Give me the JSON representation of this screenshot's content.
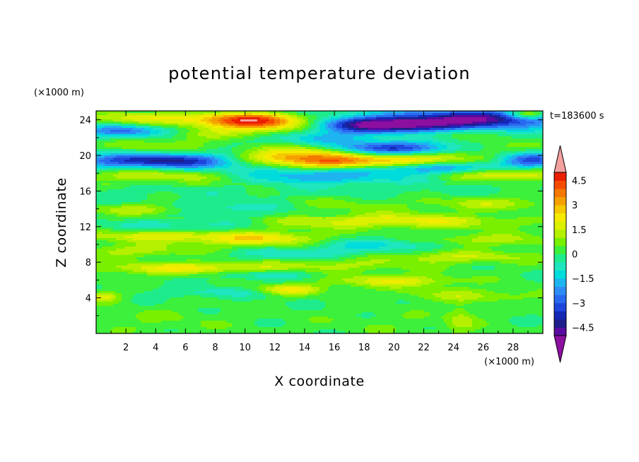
{
  "chart_data": {
    "type": "heatmap",
    "title": "potential temperature deviation",
    "xlabel": "X coordinate",
    "ylabel": "Z coordinate",
    "x_unit": "(×1000 m)",
    "y_unit": "(×1000 m)",
    "time_label": "t=183600 s",
    "xlim": [
      0,
      30
    ],
    "ylim": [
      0,
      25
    ],
    "x_ticks": [
      2,
      4,
      6,
      8,
      10,
      12,
      14,
      16,
      18,
      20,
      22,
      24,
      26,
      28
    ],
    "y_ticks": [
      4,
      8,
      12,
      16,
      20,
      24
    ],
    "x_tick_labels": [
      "2",
      "4",
      "6",
      "8",
      "10",
      "12",
      "14",
      "16",
      "18",
      "20",
      "22",
      "24",
      "26",
      "28"
    ],
    "y_tick_labels": [
      "4",
      "8",
      "12",
      "16",
      "20",
      "24"
    ],
    "colorbar": {
      "levels": [
        -5,
        -4.5,
        -4,
        -3.5,
        -3,
        -2.5,
        -2,
        -1.5,
        -1,
        -0.5,
        0,
        0.5,
        1,
        1.5,
        2,
        2.5,
        3,
        3.5,
        4,
        4.5,
        5
      ],
      "colors": [
        "#5a0aa0",
        "#1e1e8c",
        "#1428b4",
        "#1e46dc",
        "#2869f0",
        "#2d8cf5",
        "#1eb4f0",
        "#00dcdc",
        "#1ee6be",
        "#1eeb8c",
        "#3cf03c",
        "#78f000",
        "#b4f000",
        "#dcf000",
        "#f5eb00",
        "#f5c800",
        "#f5a000",
        "#f57800",
        "#f54b00",
        "#eb1e00"
      ],
      "below_color": "#8c0fa0",
      "above_color": "#f5a0a0",
      "tick_values": [
        4.5,
        3,
        1.5,
        0,
        -1.5,
        -3,
        -4.5
      ],
      "tick_labels": [
        "4.5",
        "3",
        "1.5",
        "0",
        "−1.5",
        "−3",
        "−4.5"
      ]
    },
    "features": [
      {
        "x": 10,
        "z": 24.0,
        "sx": 2.6,
        "sz": 0.6,
        "v": 3.8
      },
      {
        "x": 3.0,
        "z": 24.2,
        "sx": 3.0,
        "sz": 0.6,
        "v": 2.2
      },
      {
        "x": 16,
        "z": 24.3,
        "sx": 5.0,
        "sz": 0.5,
        "v": 1.2
      },
      {
        "x": 29,
        "z": 24.6,
        "sx": 1.0,
        "sz": 0.4,
        "v": 3.5
      },
      {
        "x": 22,
        "z": 23.8,
        "sx": 5.0,
        "sz": 0.8,
        "v": -3.2
      },
      {
        "x": 19,
        "z": 23.3,
        "sx": 3.5,
        "sz": 0.7,
        "v": -3.6
      },
      {
        "x": 27,
        "z": 24.3,
        "sx": 3.0,
        "sz": 0.6,
        "v": -2.6
      },
      {
        "x": 12,
        "z": 23.3,
        "sx": 3.0,
        "sz": 0.6,
        "v": 2.8
      },
      {
        "x": 2.0,
        "z": 22.7,
        "sx": 2.0,
        "sz": 0.5,
        "v": -2.4
      },
      {
        "x": 8.0,
        "z": 22.3,
        "sx": 4.0,
        "sz": 0.5,
        "v": 1.2
      },
      {
        "x": 22,
        "z": 22.5,
        "sx": 4.0,
        "sz": 0.5,
        "v": 1.6
      },
      {
        "x": 15,
        "z": 22.0,
        "sx": 3.0,
        "sz": 0.6,
        "v": -1.2
      },
      {
        "x": 4.0,
        "z": 21.0,
        "sx": 3.5,
        "sz": 0.6,
        "v": 1.5
      },
      {
        "x": 20,
        "z": 20.8,
        "sx": 3.0,
        "sz": 0.5,
        "v": -3.2
      },
      {
        "x": 14,
        "z": 20.6,
        "sx": 2.5,
        "sz": 0.6,
        "v": 1.8
      },
      {
        "x": 27,
        "z": 20.9,
        "sx": 3.0,
        "sz": 0.7,
        "v": 1.3
      },
      {
        "x": 5.0,
        "z": 19.4,
        "sx": 4.5,
        "sz": 0.6,
        "v": -3.8
      },
      {
        "x": 29,
        "z": 19.5,
        "sx": 1.5,
        "sz": 0.6,
        "v": -3.0
      },
      {
        "x": 12.5,
        "z": 19.6,
        "sx": 3.0,
        "sz": 0.6,
        "v": 3.6
      },
      {
        "x": 20.5,
        "z": 19.4,
        "sx": 4.0,
        "sz": 0.6,
        "v": 3.2
      },
      {
        "x": 16,
        "z": 19.0,
        "sx": 2.0,
        "sz": 0.5,
        "v": 1.5
      },
      {
        "x": 23,
        "z": 18.6,
        "sx": 3.5,
        "sz": 0.5,
        "v": -2.6
      },
      {
        "x": 14,
        "z": 17.6,
        "sx": 3.5,
        "sz": 0.6,
        "v": -2.0
      },
      {
        "x": 27.5,
        "z": 17.9,
        "sx": 3.0,
        "sz": 0.6,
        "v": 2.8
      },
      {
        "x": 3.0,
        "z": 17.8,
        "sx": 4.0,
        "sz": 0.6,
        "v": 1.8
      },
      {
        "x": 10,
        "z": 17.3,
        "sx": 4.0,
        "sz": 0.5,
        "v": 0.9
      },
      {
        "x": 3.0,
        "z": 13.9,
        "sx": 2.5,
        "sz": 0.5,
        "v": 1.6
      },
      {
        "x": 9.0,
        "z": 14.2,
        "sx": 3.0,
        "sz": 0.5,
        "v": -1.0
      },
      {
        "x": 16,
        "z": 14.5,
        "sx": 5.0,
        "sz": 0.6,
        "v": 0.8
      },
      {
        "x": 27,
        "z": 14.6,
        "sx": 3.0,
        "sz": 0.6,
        "v": 1.4
      },
      {
        "x": 20,
        "z": 12.9,
        "sx": 4.0,
        "sz": 0.6,
        "v": 1.5
      },
      {
        "x": 24,
        "z": 12.4,
        "sx": 4.0,
        "sz": 0.5,
        "v": 0.8
      },
      {
        "x": 6.0,
        "z": 12.0,
        "sx": 4.0,
        "sz": 0.6,
        "v": -1.0
      },
      {
        "x": 14,
        "z": 12.3,
        "sx": 3.0,
        "sz": 0.5,
        "v": 0.9
      },
      {
        "x": 4.0,
        "z": 11.0,
        "sx": 3.5,
        "sz": 0.5,
        "v": 1.8
      },
      {
        "x": 11,
        "z": 10.6,
        "sx": 3.0,
        "sz": 0.6,
        "v": 2.2
      },
      {
        "x": 26,
        "z": 10.5,
        "sx": 3.0,
        "sz": 0.5,
        "v": 1.3
      },
      {
        "x": 19,
        "z": 10.0,
        "sx": 3.5,
        "sz": 0.5,
        "v": -1.2
      },
      {
        "x": 3.0,
        "z": 9.3,
        "sx": 3.0,
        "sz": 0.5,
        "v": 1.2
      },
      {
        "x": 14,
        "z": 9.0,
        "sx": 4.0,
        "sz": 0.5,
        "v": -1.0
      },
      {
        "x": 24,
        "z": 8.6,
        "sx": 4.0,
        "sz": 0.5,
        "v": 1.4
      },
      {
        "x": 6.0,
        "z": 7.3,
        "sx": 4.0,
        "sz": 0.5,
        "v": 2.0
      },
      {
        "x": 16,
        "z": 7.6,
        "sx": 4.0,
        "sz": 0.5,
        "v": 1.0
      },
      {
        "x": 11,
        "z": 6.6,
        "sx": 3.0,
        "sz": 0.4,
        "v": -1.0
      },
      {
        "x": 20,
        "z": 5.9,
        "sx": 3.0,
        "sz": 0.5,
        "v": 1.8
      },
      {
        "x": 13,
        "z": 4.9,
        "sx": 1.5,
        "sz": 0.4,
        "v": 2.2
      },
      {
        "x": 0.5,
        "z": 4.1,
        "sx": 0.8,
        "sz": 0.4,
        "v": 1.8
      },
      {
        "x": 25,
        "z": 4.3,
        "sx": 3.5,
        "sz": 0.5,
        "v": 1.0
      },
      {
        "x": 8.0,
        "z": 4.6,
        "sx": 3.0,
        "sz": 0.4,
        "v": -0.8
      },
      {
        "x": 24.5,
        "z": 1.7,
        "sx": 0.7,
        "sz": 1.2,
        "v": 1.0
      },
      {
        "x": 4.0,
        "z": 1.5,
        "sx": 4.0,
        "sz": 1.0,
        "v": 0.4
      },
      {
        "x": 20,
        "z": 1.2,
        "sx": 4.0,
        "sz": 1.0,
        "v": 0.3
      }
    ]
  }
}
